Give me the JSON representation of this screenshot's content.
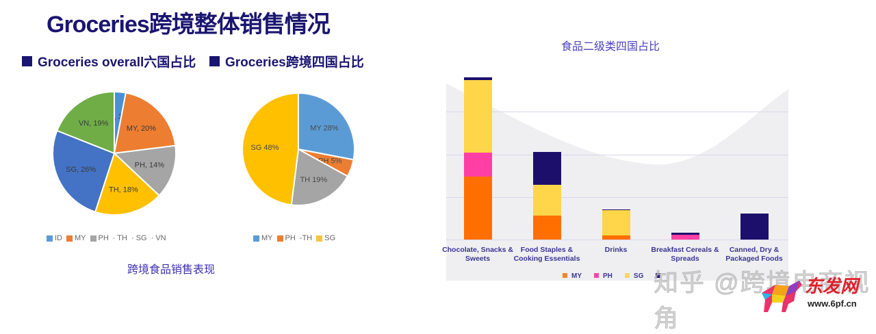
{
  "header": {
    "title": "Groceries跨境整体销售情况",
    "subhead_left": "Groceries overall六国占比",
    "subhead_right": "Groceries跨境四国占比"
  },
  "captions": {
    "pies_caption": "跨境食品销售表现",
    "bar_title": "食品二级类四国占比"
  },
  "pie1_legend": [
    "ID",
    "MY",
    "PH",
    "· TH",
    "· SG",
    "· VN"
  ],
  "pie2_legend": [
    "MY",
    "PH",
    "-TH",
    "SG"
  ],
  "bar_legend": [
    "MY",
    "PH",
    "SG",
    ""
  ],
  "bar_xlabels": [
    [
      "Chocolate, Snacks &",
      "Sweets"
    ],
    [
      "Food Staples &",
      "Cooking Essentials"
    ],
    [
      "Drinks",
      ""
    ],
    [
      "Breakfast Cereals &",
      "Spreads"
    ],
    [
      "Canned, Dry &",
      "Packaged Foods"
    ]
  ],
  "watermark": {
    "text": "知乎 @跨境电商视角",
    "logo_text": "东发网",
    "logo_url": "www.6pf.cn"
  },
  "colors": {
    "navy": "#1a1570",
    "ID": "#4a90d9",
    "MY_pie": "#ed7d31",
    "PH_pie": "#a5a5a5",
    "TH_pie": "#ffc000",
    "SG_pie": "#4472c4",
    "VN_pie": "#70ad47",
    "bar_MY": "#ff6f00",
    "bar_PH": "#ff3fa4",
    "bar_SG": "#ffd54a",
    "bar_other": "#1c0f6b"
  },
  "chart_data": [
    {
      "type": "pie",
      "title": "Groceries overall六国占比",
      "categories": [
        "ID",
        "MY",
        "PH",
        "TH",
        "SG",
        "VN"
      ],
      "values": [
        3,
        20,
        14,
        18,
        26,
        19
      ],
      "labels": [
        "ID, 3%",
        "MY, 20%",
        "PH, 14%",
        "TH, 18%",
        "SG, 26%",
        "VN, 19%"
      ],
      "legend_position": "bottom"
    },
    {
      "type": "pie",
      "title": "Groceries跨境四国占比",
      "categories": [
        "MY",
        "PH",
        "TH",
        "SG"
      ],
      "values": [
        28,
        5,
        19,
        48
      ],
      "labels": [
        "MY 28%",
        "PH 5%",
        "TH 19%",
        "SG 48%"
      ],
      "legend_position": "bottom"
    },
    {
      "type": "bar",
      "stacked": true,
      "title": "食品二级类四国占比",
      "categories": [
        "Chocolate, Snacks & Sweets",
        "Food Staples & Cooking Essentials",
        "Drinks",
        "Breakfast Cereals & Spreads",
        "Canned, Dry & Packaged Foods"
      ],
      "series": [
        {
          "name": "MY",
          "values": [
            92,
            35,
            6,
            0,
            0
          ]
        },
        {
          "name": "PH",
          "values": [
            35,
            0,
            0,
            7,
            0
          ]
        },
        {
          "name": "SG",
          "values": [
            106,
            45,
            37,
            0,
            0
          ]
        },
        {
          "name": "Other",
          "values": [
            4,
            48,
            1,
            3,
            38
          ]
        }
      ],
      "units": "relative (no y-axis labels shown)",
      "grid": true,
      "legend_position": "bottom"
    }
  ]
}
